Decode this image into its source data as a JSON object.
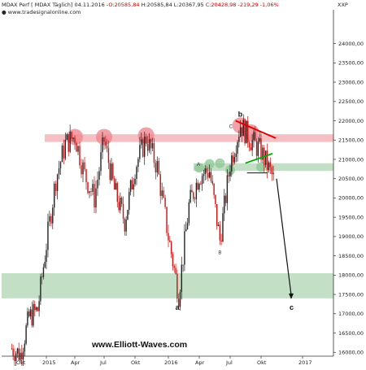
{
  "header": {
    "instrument": "MDAX Perf [ MDAX  Täglich]",
    "date": "04.11.2016",
    "open": "O:20585,84",
    "high": "H:20585,84",
    "low": "L:20367,95",
    "close": "C:20428,98",
    "change": "-219,29",
    "change_pct": "-1,06%",
    "source": "www.tradesignalonline.com",
    "currency": "XXP"
  },
  "footer": {
    "url": "www.Elliott-Waves.com"
  },
  "colors": {
    "resistance_zone": "#f4b4b8",
    "support_zone": "#b9dbbd",
    "up_candle": "#222222",
    "down_candle": "#cc1111",
    "trend_red": "#dd0000",
    "trend_green": "#00aa00",
    "circle_red": "#f08890",
    "circle_green": "#8fc896"
  },
  "chart_data": {
    "type": "candlestick",
    "title": "MDAX Perf [ MDAX  Täglich]",
    "ylim": [
      15900,
      24750
    ],
    "y_ticks": [
      "16000,00",
      "16500,00",
      "17000,00",
      "17500,00",
      "18000,00",
      "18500,00",
      "19000,00",
      "19500,00",
      "20000,00",
      "20500,00",
      "21000,00",
      "21500,00",
      "22000,00",
      "22500,00",
      "23000,00",
      "23500,00",
      "24000,00"
    ],
    "x_ticks": [
      "Okt",
      "2015",
      "Apr",
      "Jul",
      "Okt",
      "2016",
      "Apr",
      "Jul",
      "Okt",
      "2017"
    ],
    "grid": false,
    "zones": [
      {
        "name": "resistance",
        "y_from": 21450,
        "y_to": 21650,
        "x_from": "2015",
        "x_to": "Ende"
      },
      {
        "name": "support-upper",
        "y_from": 20700,
        "y_to": 20900,
        "x_from": "Apr 2016",
        "x_to": "Ende"
      },
      {
        "name": "support-lower",
        "y_from": 17400,
        "y_to": 18050,
        "x_from": "Anfang",
        "x_to": "Ende"
      }
    ],
    "waves": [
      {
        "label": "a",
        "date": "2016-02",
        "value": 17400
      },
      {
        "label": "b",
        "date": "2016-08",
        "value": 22000
      },
      {
        "label": "c",
        "date": "2016-12",
        "value": 17400
      },
      {
        "label": "A",
        "date": "2016-04",
        "value": 20700
      },
      {
        "label": "B",
        "date": "2016-06",
        "value": 18800
      },
      {
        "label": "C",
        "date": "2016-08",
        "value": 21900
      }
    ],
    "price_path": [
      [
        "2014-09",
        16100
      ],
      [
        "2014-10",
        15950
      ],
      [
        "2014-11",
        16900
      ],
      [
        "2014-12",
        17100
      ],
      [
        "2015-01",
        18800
      ],
      [
        "2015-02",
        20500
      ],
      [
        "2015-03",
        21400
      ],
      [
        "2015-04",
        21600
      ],
      [
        "2015-05",
        20600
      ],
      [
        "2015-06",
        20000
      ],
      [
        "2015-07",
        21500
      ],
      [
        "2015-08",
        20200
      ],
      [
        "2015-09",
        19400
      ],
      [
        "2015-10",
        20800
      ],
      [
        "2015-11",
        21550
      ],
      [
        "2015-12",
        20800
      ],
      [
        "2016-01",
        19000
      ],
      [
        "2016-02",
        17500
      ],
      [
        "2016-03",
        19800
      ],
      [
        "2016-04",
        20600
      ],
      [
        "2016-05",
        20700
      ],
      [
        "2016-06",
        18900
      ],
      [
        "2016-07",
        20900
      ],
      [
        "2016-08",
        21900
      ],
      [
        "2016-09",
        21500
      ],
      [
        "2016-10",
        21200
      ],
      [
        "2016-11",
        20400
      ]
    ],
    "projection": [
      [
        "2016-11",
        20500
      ],
      [
        "2016-12",
        17400
      ]
    ]
  }
}
